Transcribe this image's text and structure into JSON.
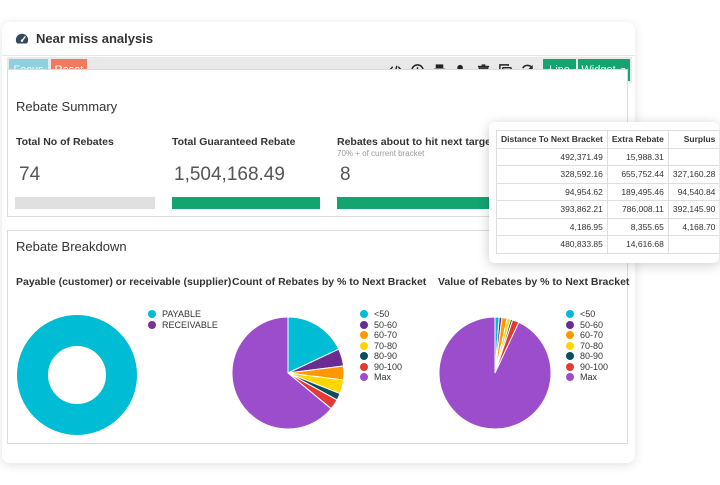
{
  "app": {
    "title": "Near miss analysis"
  },
  "toolbar": {
    "focus_label": "Focus",
    "reset_label": "Reset",
    "line_label": "Line",
    "widget_label": "Widget",
    "icons": [
      "code-icon",
      "clock-icon",
      "printer-icon",
      "user-shield-icon",
      "trash-icon",
      "copy-icon",
      "refresh-icon"
    ]
  },
  "summary": {
    "title": "Rebate Summary",
    "metrics": [
      {
        "label": "Total No of Rebates",
        "sub": "",
        "value": "74",
        "bar_color": "#e0e0e0"
      },
      {
        "label": "Total Guaranteed Rebate",
        "sub": "",
        "value": "1,504,168.49",
        "bar_color": "#13a470"
      },
      {
        "label": "Rebates about to hit next target",
        "sub": "70% + of current bracket",
        "value": "8",
        "bar_color": "#13a470"
      }
    ]
  },
  "breakdown": {
    "title": "Rebate Breakdown"
  },
  "colors": {
    "accent_green": "#13a470",
    "focus_blue": "#8fcfe0",
    "reset_orange": "#ef7a5e"
  },
  "chart_data": [
    {
      "type": "pie",
      "variant": "donut",
      "title": "Payable (customer) or receivable (supplier)",
      "legend": "right",
      "categories": [
        "PAYABLE",
        "RECEIVABLE"
      ],
      "values": [
        100,
        0
      ],
      "colors": [
        "#00bcd4",
        "#7b3294"
      ]
    },
    {
      "type": "pie",
      "title": "Count of Rebates by % to Next Bracket",
      "legend": "right",
      "categories": [
        "<50",
        "50-60",
        "60-70",
        "70-80",
        "80-90",
        "90-100",
        "Max"
      ],
      "values": [
        18,
        5,
        4,
        4,
        2,
        3,
        64
      ],
      "colors": [
        "#00bcd4",
        "#6a2c91",
        "#ff9800",
        "#ffd600",
        "#0b4f5f",
        "#e53935",
        "#9c4dcc"
      ]
    },
    {
      "type": "pie",
      "title": "Value of Rebates by % to Next Bracket",
      "legend": "right",
      "categories": [
        "<50",
        "50-60",
        "60-70",
        "70-80",
        "80-90",
        "90-100",
        "Max"
      ],
      "values": [
        1.2,
        0.8,
        1.5,
        1.0,
        0.6,
        1.9,
        93
      ],
      "colors": [
        "#00bcd4",
        "#6a2c91",
        "#ff9800",
        "#ffd600",
        "#0b4f5f",
        "#e53935",
        "#9c4dcc"
      ]
    }
  ],
  "table": {
    "headers": [
      "Distance To Next Bracket",
      "Extra Rebate",
      "Surplus"
    ],
    "rows": [
      [
        "492,371.49",
        "15,988.31",
        ""
      ],
      [
        "328,592.16",
        "655,752.44",
        "327,160.28"
      ],
      [
        "94,954.62",
        "189,495.46",
        "94,540.84"
      ],
      [
        "393,862.21",
        "786,008.11",
        "392,145.90"
      ],
      [
        "4,186.95",
        "8,355.65",
        "4,168.70"
      ],
      [
        "480,833.85",
        "14,616.68",
        ""
      ]
    ]
  }
}
